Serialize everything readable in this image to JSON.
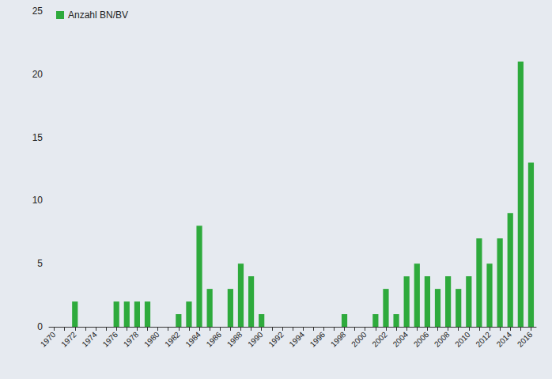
{
  "chart_data": {
    "type": "bar",
    "categories": [
      "1970",
      null,
      "1972",
      null,
      "1974",
      null,
      "1976",
      null,
      "1978",
      null,
      "1980",
      null,
      "1982",
      null,
      "1984",
      null,
      "1986",
      null,
      "1988",
      null,
      "1990",
      null,
      "1992",
      null,
      "1994",
      null,
      "1996",
      null,
      "1998",
      null,
      "2000",
      null,
      "2002",
      null,
      "2004",
      null,
      "2006",
      null,
      "2008",
      null,
      "2010",
      null,
      "2012",
      null,
      "2014",
      null,
      "2016"
    ],
    "series": [
      {
        "name": "Anzahl BN/BV",
        "color": "#2eaa3c",
        "values": [
          0,
          0,
          2,
          0,
          0,
          0,
          2,
          2,
          2,
          2,
          0,
          0,
          1,
          2,
          8,
          3,
          0,
          3,
          5,
          4,
          1,
          0,
          0,
          0,
          0,
          0,
          0,
          0,
          1,
          0,
          0,
          1,
          3,
          1,
          4,
          5,
          4,
          3,
          4,
          3,
          4,
          7,
          5,
          7,
          9,
          21,
          13
        ]
      }
    ],
    "ylim": [
      0,
      25
    ],
    "yticks": [
      0,
      5,
      10,
      15,
      20,
      25
    ],
    "grid": false,
    "legend": "top-left"
  }
}
